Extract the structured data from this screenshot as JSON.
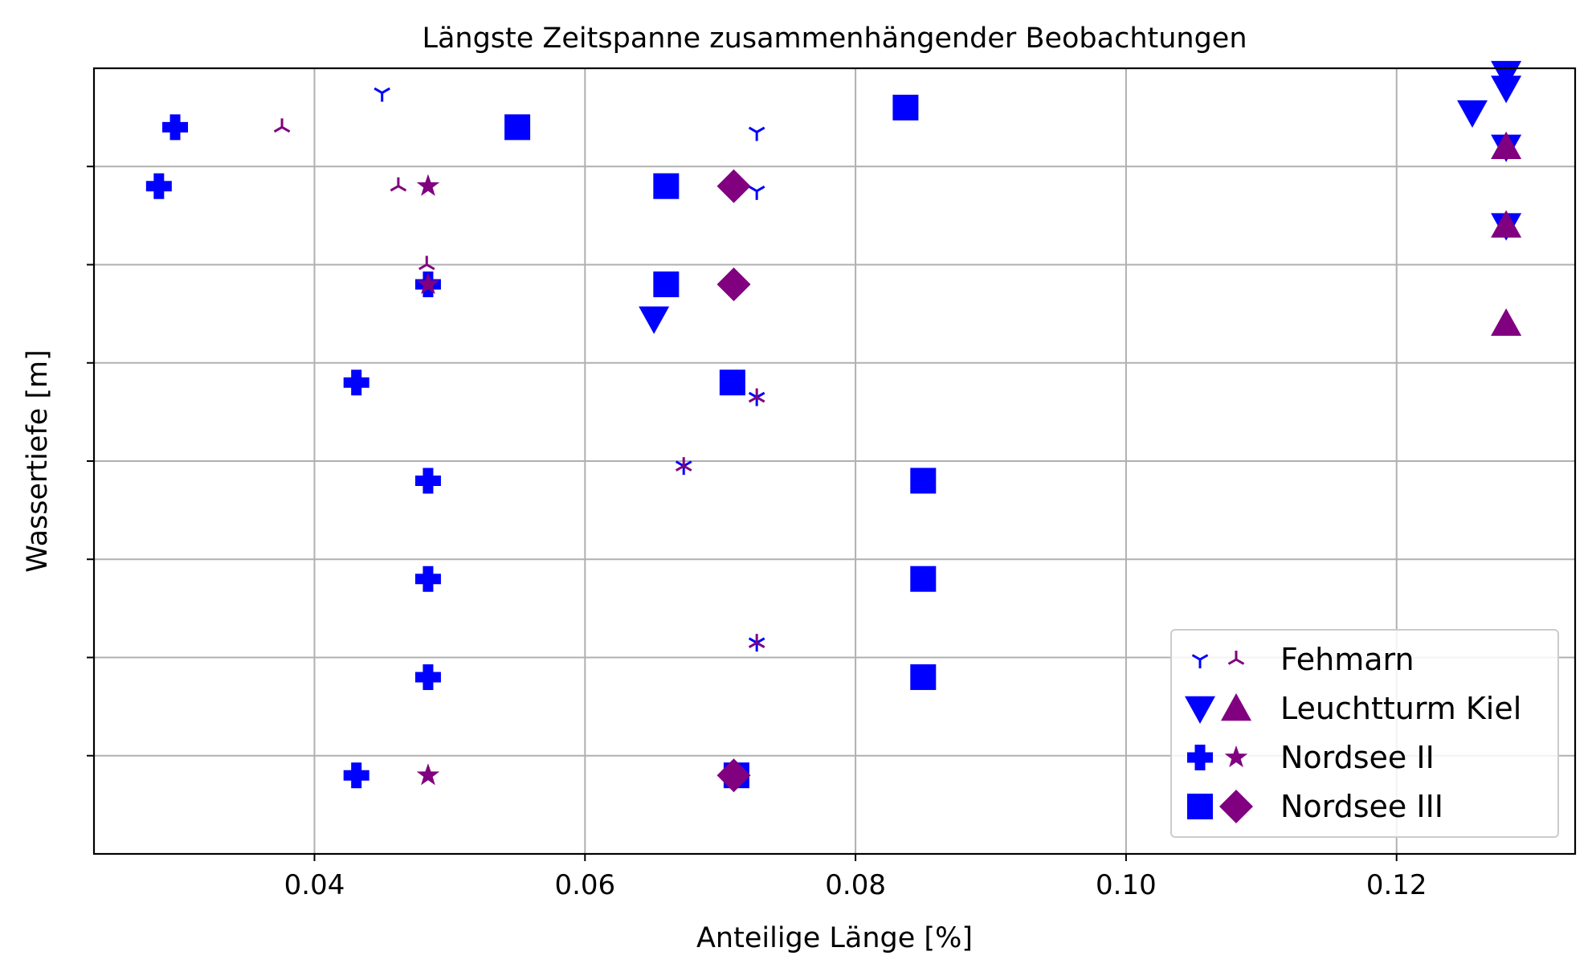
{
  "chart_data": {
    "type": "scatter",
    "title": "Längste Zeitspanne zusammenhängender Beobachtungen",
    "xlabel": "Anteilige Länge [%]",
    "ylabel": "Wassertiefe [m]",
    "xlim": [
      0.0237,
      0.1332
    ],
    "ylim": [
      0,
      8.0
    ],
    "xticks": [
      0.04,
      0.06,
      0.08,
      0.1,
      0.12
    ],
    "xtick_labels": [
      "0.04",
      "0.06",
      "0.08",
      "0.10",
      "0.12"
    ],
    "yticks": [
      1,
      2,
      3,
      4,
      5,
      6,
      7
    ],
    "grid": true,
    "legend_position": "lower-right",
    "legend": [
      {
        "label": "Fehmarn",
        "series": [
          "fehmarn-a",
          "fehmarn-b"
        ]
      },
      {
        "label": "Leuchtturm Kiel",
        "series": [
          "kiel-a",
          "kiel-b"
        ]
      },
      {
        "label": "Nordsee II",
        "series": [
          "nordsee2-a",
          "nordsee2-b"
        ]
      },
      {
        "label": "Nordsee III",
        "series": [
          "nordsee3-a",
          "nordsee3-b"
        ]
      }
    ],
    "series": [
      {
        "id": "fehmarn-a",
        "marker": "tri-down",
        "color": "#0000ff",
        "points": [
          [
            0.045,
            7.75
          ],
          [
            0.0727,
            7.35
          ],
          [
            0.0727,
            6.75
          ],
          [
            0.0727,
            4.65
          ],
          [
            0.0673,
            3.95
          ],
          [
            0.0727,
            2.15
          ]
        ]
      },
      {
        "id": "fehmarn-b",
        "marker": "tri-up",
        "color": "#800080",
        "points": [
          [
            0.0376,
            7.4
          ],
          [
            0.0462,
            6.8
          ],
          [
            0.0483,
            6.0
          ],
          [
            0.0727,
            4.65
          ],
          [
            0.0673,
            3.95
          ],
          [
            0.0727,
            2.15
          ]
        ]
      },
      {
        "id": "kiel-a",
        "marker": "triangle-down",
        "color": "#0000ff",
        "points": [
          [
            0.1281,
            7.95
          ],
          [
            0.1281,
            7.8
          ],
          [
            0.1256,
            7.55
          ],
          [
            0.1281,
            7.2
          ],
          [
            0.1281,
            6.4
          ],
          [
            0.0651,
            5.45
          ]
        ]
      },
      {
        "id": "kiel-b",
        "marker": "triangle-up",
        "color": "#800080",
        "points": [
          [
            0.1281,
            7.2
          ],
          [
            0.1281,
            6.4
          ],
          [
            0.1281,
            5.4
          ]
        ]
      },
      {
        "id": "nordsee2-a",
        "marker": "plus-filled",
        "color": "#0000ff",
        "points": [
          [
            0.0297,
            7.4
          ],
          [
            0.0285,
            6.8
          ],
          [
            0.0484,
            5.8
          ],
          [
            0.0431,
            4.8
          ],
          [
            0.0484,
            3.8
          ],
          [
            0.0484,
            2.8
          ],
          [
            0.0484,
            1.8
          ],
          [
            0.0431,
            0.8
          ]
        ]
      },
      {
        "id": "nordsee2-b",
        "marker": "star",
        "color": "#800080",
        "points": [
          [
            0.0484,
            6.8
          ],
          [
            0.0484,
            5.8
          ],
          [
            0.0484,
            0.8
          ]
        ]
      },
      {
        "id": "nordsee3-a",
        "marker": "square",
        "color": "#0000ff",
        "points": [
          [
            0.0837,
            7.6
          ],
          [
            0.055,
            7.4
          ],
          [
            0.066,
            6.8
          ],
          [
            0.066,
            5.8
          ],
          [
            0.0709,
            4.8
          ],
          [
            0.085,
            3.8
          ],
          [
            0.085,
            2.8
          ],
          [
            0.085,
            1.8
          ],
          [
            0.0712,
            0.8
          ]
        ]
      },
      {
        "id": "nordsee3-b",
        "marker": "diamond",
        "color": "#800080",
        "points": [
          [
            0.071,
            6.8
          ],
          [
            0.071,
            5.8
          ],
          [
            0.071,
            0.8
          ]
        ]
      }
    ]
  }
}
